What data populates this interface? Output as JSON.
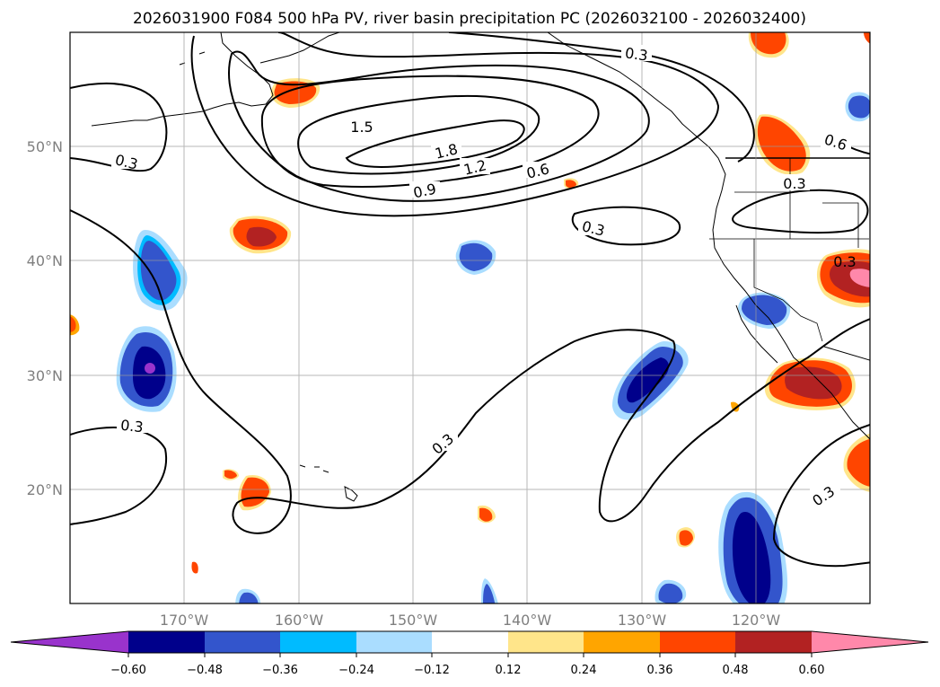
{
  "title": "2026031900 F084 500 hPa PV, river basin precipitation PC (2026032100 - 2026032400)",
  "lat_labels": [
    "50°N",
    "40°N",
    "30°N",
    "20°N"
  ],
  "lon_labels": [
    "170°W",
    "160°W",
    "150°W",
    "140°W",
    "130°W",
    "120°W"
  ],
  "colorbar": {
    "ticks": [
      "−0.60",
      "−0.48",
      "−0.36",
      "−0.24",
      "−0.12",
      "0.12",
      "0.24",
      "0.36",
      "0.48",
      "0.60"
    ],
    "colors": [
      "#9933cc",
      "#00008b",
      "#3355cc",
      "#00bbff",
      "#aaddff",
      "#ffffff",
      "#ffe58a",
      "#ffa500",
      "#ff4500",
      "#b22222",
      "#ff88aa"
    ]
  },
  "contour_labels": [
    "0.3",
    "0.3",
    "0.3",
    "0.3",
    "0.3",
    "0.3",
    "0.3",
    "0.3",
    "0.6",
    "0.6",
    "0.9",
    "1.2",
    "1.5",
    "1.8"
  ]
}
